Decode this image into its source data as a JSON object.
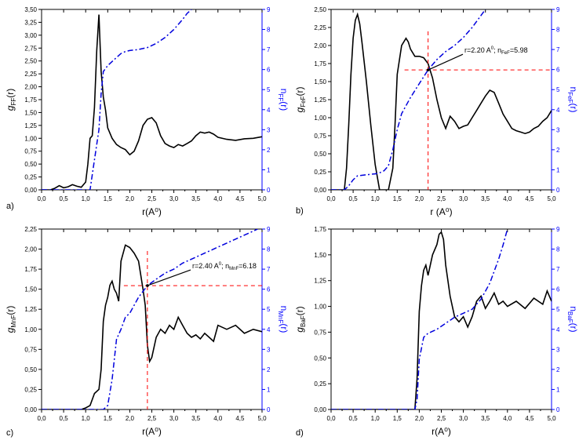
{
  "chart_data": [
    {
      "id": "a",
      "type": "line",
      "panel_label": "a)",
      "xlabel": "r(A⁰)",
      "ylabel_main": "g",
      "ylabel_sub": "FF",
      "ylabel_tail": "(r)",
      "y2label_main": "n",
      "y2label_sub": "FF",
      "y2label_tail": "(r)",
      "xlim": [
        0,
        5
      ],
      "xticks": [
        "0,0",
        "0,5",
        "1,0",
        "1,5",
        "2,0",
        "2,5",
        "3,0",
        "3,5",
        "4,0",
        "4,5",
        "5,0"
      ],
      "ylim": [
        0,
        3.5
      ],
      "yticks": [
        "0,00",
        "0,25",
        "0,50",
        "0,75",
        "1,00",
        "1,25",
        "1,50",
        "1,75",
        "2,00",
        "2,25",
        "2,50",
        "2,75",
        "3,00",
        "3,25",
        "3,50"
      ],
      "y2lim": [
        0,
        9
      ],
      "y2ticks": [
        "0",
        "1",
        "2",
        "3",
        "4",
        "5",
        "6",
        "7",
        "8",
        "9"
      ],
      "series": [
        {
          "name": "g(r)",
          "axis": "left",
          "x": [
            0,
            0.2,
            0.3,
            0.4,
            0.5,
            0.6,
            0.7,
            0.8,
            0.9,
            1.0,
            1.05,
            1.1,
            1.15,
            1.2,
            1.25,
            1.3,
            1.35,
            1.4,
            1.45,
            1.5,
            1.6,
            1.7,
            1.8,
            1.9,
            2.0,
            2.1,
            2.2,
            2.3,
            2.4,
            2.5,
            2.6,
            2.7,
            2.8,
            2.9,
            3.0,
            3.1,
            3.2,
            3.3,
            3.4,
            3.5,
            3.6,
            3.7,
            3.8,
            3.9,
            4.0,
            4.2,
            4.4,
            4.6,
            4.8,
            5.0
          ],
          "values": [
            0,
            0,
            0.03,
            0.08,
            0.04,
            0.06,
            0.1,
            0.07,
            0.05,
            0.15,
            0.5,
            1.0,
            1.05,
            1.6,
            2.7,
            3.4,
            2.3,
            1.8,
            1.55,
            1.2,
            1.0,
            0.88,
            0.82,
            0.78,
            0.68,
            0.75,
            0.95,
            1.25,
            1.37,
            1.4,
            1.3,
            1.05,
            0.9,
            0.85,
            0.82,
            0.88,
            0.85,
            0.9,
            0.95,
            1.05,
            1.12,
            1.1,
            1.12,
            1.08,
            1.02,
            0.98,
            0.96,
            0.99,
            1.0,
            1.03
          ]
        },
        {
          "name": "n(r)",
          "axis": "right",
          "x": [
            0,
            1.1,
            1.2,
            1.3,
            1.35,
            1.4,
            1.5,
            1.6,
            1.7,
            1.8,
            1.9,
            2.0,
            2.2,
            2.4,
            2.6,
            2.8,
            3.0,
            3.2,
            3.3,
            3.4
          ],
          "values": [
            0,
            0,
            1.5,
            3.0,
            4.8,
            5.9,
            6.2,
            6.4,
            6.6,
            6.8,
            6.9,
            6.95,
            7.0,
            7.1,
            7.3,
            7.6,
            8.0,
            8.5,
            8.8,
            9.0
          ]
        }
      ]
    },
    {
      "id": "b",
      "type": "line",
      "panel_label": "b)",
      "xlabel": "r (A⁰)",
      "ylabel_main": "g",
      "ylabel_sub": "FeF",
      "ylabel_tail": "(r)",
      "y2label_main": "n",
      "y2label_sub": "FeF",
      "y2label_tail": "(r)",
      "xlim": [
        0,
        5
      ],
      "xticks": [
        "0,0",
        "0,5",
        "1,0",
        "1,5",
        "2,0",
        "2,5",
        "3,0",
        "3,5",
        "4,0",
        "4,5",
        "5,0"
      ],
      "ylim": [
        0,
        2.5
      ],
      "yticks": [
        "0,00",
        "0,25",
        "0,50",
        "0,75",
        "1,00",
        "1,25",
        "1,50",
        "1,75",
        "2,00",
        "2,25",
        "2,50"
      ],
      "y2lim": [
        0,
        9
      ],
      "y2ticks": [
        "0",
        "1",
        "2",
        "3",
        "4",
        "5",
        "6",
        "7",
        "8",
        "9"
      ],
      "annotation": {
        "main": "r=2.20 A",
        "sup": "0",
        "mid": "; n",
        "sub": "FeF",
        "tail": "=5.98",
        "x": 2.2,
        "y2": 5.98
      },
      "series": [
        {
          "name": "g(r)",
          "axis": "left",
          "x": [
            0,
            0.3,
            0.35,
            0.4,
            0.45,
            0.5,
            0.55,
            0.6,
            0.65,
            0.7,
            0.8,
            0.9,
            1.0,
            1.1,
            1.15,
            1.2,
            1.3,
            1.4,
            1.45,
            1.5,
            1.6,
            1.7,
            1.75,
            1.8,
            1.9,
            2.0,
            2.1,
            2.2,
            2.3,
            2.4,
            2.5,
            2.6,
            2.7,
            2.8,
            2.9,
            3.0,
            3.1,
            3.2,
            3.3,
            3.4,
            3.5,
            3.6,
            3.7,
            3.8,
            3.9,
            4.0,
            4.1,
            4.2,
            4.3,
            4.4,
            4.5,
            4.6,
            4.7,
            4.8,
            4.9,
            5.0
          ],
          "values": [
            0,
            0,
            0.3,
            0.9,
            1.6,
            2.1,
            2.35,
            2.43,
            2.3,
            2.05,
            1.5,
            0.9,
            0.35,
            0.0,
            0.0,
            0.0,
            0.0,
            0.3,
            0.9,
            1.6,
            2.0,
            2.1,
            2.05,
            1.95,
            1.85,
            1.85,
            1.83,
            1.75,
            1.55,
            1.25,
            1.0,
            0.85,
            1.02,
            0.95,
            0.85,
            0.88,
            0.9,
            1.0,
            1.1,
            1.2,
            1.3,
            1.38,
            1.35,
            1.2,
            1.05,
            0.95,
            0.85,
            0.82,
            0.8,
            0.78,
            0.8,
            0.85,
            0.88,
            0.95,
            1.0,
            1.1
          ]
        },
        {
          "name": "n(r)",
          "axis": "right",
          "x": [
            0,
            0.3,
            0.4,
            0.5,
            0.6,
            0.8,
            1.0,
            1.1,
            1.2,
            1.3,
            1.4,
            1.5,
            1.6,
            1.7,
            1.8,
            2.0,
            2.2,
            2.4,
            2.6,
            2.8,
            3.0,
            3.2,
            3.4,
            3.5
          ],
          "values": [
            0,
            0,
            0.2,
            0.5,
            0.7,
            0.75,
            0.8,
            0.85,
            0.95,
            1.2,
            2.0,
            3.0,
            3.8,
            4.2,
            4.6,
            5.3,
            5.98,
            6.5,
            6.9,
            7.2,
            7.6,
            8.1,
            8.7,
            9.0
          ]
        }
      ]
    },
    {
      "id": "c",
      "type": "line",
      "panel_label": "c)",
      "xlabel": "r(A⁰)",
      "ylabel_main": "g",
      "ylabel_sub": "MnF",
      "ylabel_tail": "(r)",
      "y2label_main": "n",
      "y2label_sub": "MnF",
      "y2label_tail": "(r)",
      "xlim": [
        0,
        5
      ],
      "xticks": [
        "0,0",
        "0,5",
        "1,0",
        "1,5",
        "2,0",
        "2,5",
        "3,0",
        "3,5",
        "4,0",
        "4,5",
        "5,0"
      ],
      "ylim": [
        0,
        2.25
      ],
      "yticks": [
        "0,00",
        "0,25",
        "0,50",
        "0,75",
        "1,00",
        "1,25",
        "1,50",
        "1,75",
        "2,00",
        "2,25"
      ],
      "y2lim": [
        0,
        9
      ],
      "y2ticks": [
        "0",
        "1",
        "2",
        "3",
        "4",
        "5",
        "6",
        "7",
        "8",
        "9"
      ],
      "annotation": {
        "main": "r=2.40 A",
        "sup": "0",
        "mid": "; n",
        "sub": "MnF",
        "tail": "=6.18",
        "x": 2.4,
        "y2": 6.18
      },
      "series": [
        {
          "name": "g(r)",
          "axis": "left",
          "x": [
            0,
            0.9,
            1.0,
            1.1,
            1.2,
            1.3,
            1.35,
            1.4,
            1.45,
            1.5,
            1.55,
            1.6,
            1.65,
            1.7,
            1.75,
            1.8,
            1.9,
            2.0,
            2.1,
            2.2,
            2.3,
            2.35,
            2.4,
            2.45,
            2.5,
            2.6,
            2.7,
            2.8,
            2.9,
            3.0,
            3.1,
            3.2,
            3.3,
            3.4,
            3.5,
            3.6,
            3.7,
            3.8,
            3.9,
            4.0,
            4.2,
            4.4,
            4.6,
            4.8,
            5.0
          ],
          "values": [
            0,
            0,
            0.02,
            0.05,
            0.2,
            0.25,
            0.5,
            1.1,
            1.3,
            1.4,
            1.55,
            1.6,
            1.5,
            1.45,
            1.35,
            1.85,
            2.05,
            2.02,
            1.95,
            1.85,
            1.5,
            1.3,
            0.8,
            0.6,
            0.65,
            0.9,
            1.0,
            0.95,
            1.05,
            1.0,
            1.15,
            1.05,
            0.95,
            0.9,
            0.93,
            0.88,
            0.95,
            0.9,
            0.85,
            1.05,
            1.0,
            1.05,
            0.95,
            1.0,
            0.97
          ]
        },
        {
          "name": "n(r)",
          "axis": "right",
          "x": [
            0,
            1.4,
            1.5,
            1.6,
            1.7,
            1.8,
            1.9,
            2.0,
            2.2,
            2.4,
            2.6,
            2.8,
            3.0,
            3.2,
            3.4,
            3.6,
            3.8,
            4.0,
            4.2,
            4.4,
            4.6,
            4.8,
            4.9
          ],
          "values": [
            0,
            0,
            0.2,
            1.5,
            3.5,
            4.0,
            4.6,
            4.8,
            5.6,
            6.18,
            6.5,
            6.8,
            7.0,
            7.3,
            7.5,
            7.7,
            7.9,
            8.1,
            8.3,
            8.5,
            8.7,
            8.9,
            9.0
          ]
        }
      ]
    },
    {
      "id": "d",
      "type": "line",
      "panel_label": "d)",
      "xlabel": "r(A⁰)",
      "ylabel_main": "g",
      "ylabel_sub": "BaF",
      "ylabel_tail": "(r)",
      "y2label_main": "n",
      "y2label_sub": "BaF",
      "y2label_tail": "(r)",
      "xlim": [
        0,
        5
      ],
      "xticks": [
        "0,0",
        "0,5",
        "1,0",
        "1,5",
        "2,0",
        "2,5",
        "3,0",
        "3,5",
        "4,0",
        "4,5",
        "5,0"
      ],
      "ylim": [
        0,
        1.75
      ],
      "yticks": [
        "0,00",
        "0,25",
        "0,50",
        "0,75",
        "1,00",
        "1,25",
        "1,50",
        "1,75"
      ],
      "y2lim": [
        0,
        9
      ],
      "y2ticks": [
        "0",
        "1",
        "2",
        "3",
        "4",
        "5",
        "6",
        "7",
        "8",
        "9"
      ],
      "series": [
        {
          "name": "g(r)",
          "axis": "left",
          "x": [
            0,
            1.9,
            1.95,
            2.0,
            2.05,
            2.1,
            2.15,
            2.2,
            2.3,
            2.4,
            2.45,
            2.5,
            2.55,
            2.6,
            2.7,
            2.8,
            2.9,
            3.0,
            3.1,
            3.2,
            3.3,
            3.4,
            3.5,
            3.6,
            3.7,
            3.8,
            3.9,
            4.0,
            4.2,
            4.4,
            4.6,
            4.8,
            4.9,
            5.0
          ],
          "values": [
            0,
            0,
            0.3,
            0.95,
            1.2,
            1.35,
            1.4,
            1.3,
            1.5,
            1.6,
            1.7,
            1.72,
            1.65,
            1.4,
            1.1,
            0.9,
            0.85,
            0.9,
            0.8,
            0.9,
            1.05,
            1.1,
            0.98,
            1.05,
            1.13,
            1.02,
            1.05,
            1.0,
            1.05,
            0.98,
            1.08,
            1.02,
            1.15,
            1.05
          ]
        },
        {
          "name": "n(r)",
          "axis": "right",
          "x": [
            0,
            1.9,
            1.95,
            2.0,
            2.1,
            2.2,
            2.3,
            2.4,
            2.6,
            2.8,
            3.0,
            3.2,
            3.4,
            3.6,
            3.8,
            3.9,
            4.0
          ],
          "values": [
            0,
            0,
            0.5,
            2.5,
            3.6,
            3.8,
            3.9,
            4.0,
            4.3,
            4.6,
            4.8,
            5.0,
            5.5,
            6.3,
            7.5,
            8.2,
            9.0
          ]
        }
      ]
    }
  ]
}
